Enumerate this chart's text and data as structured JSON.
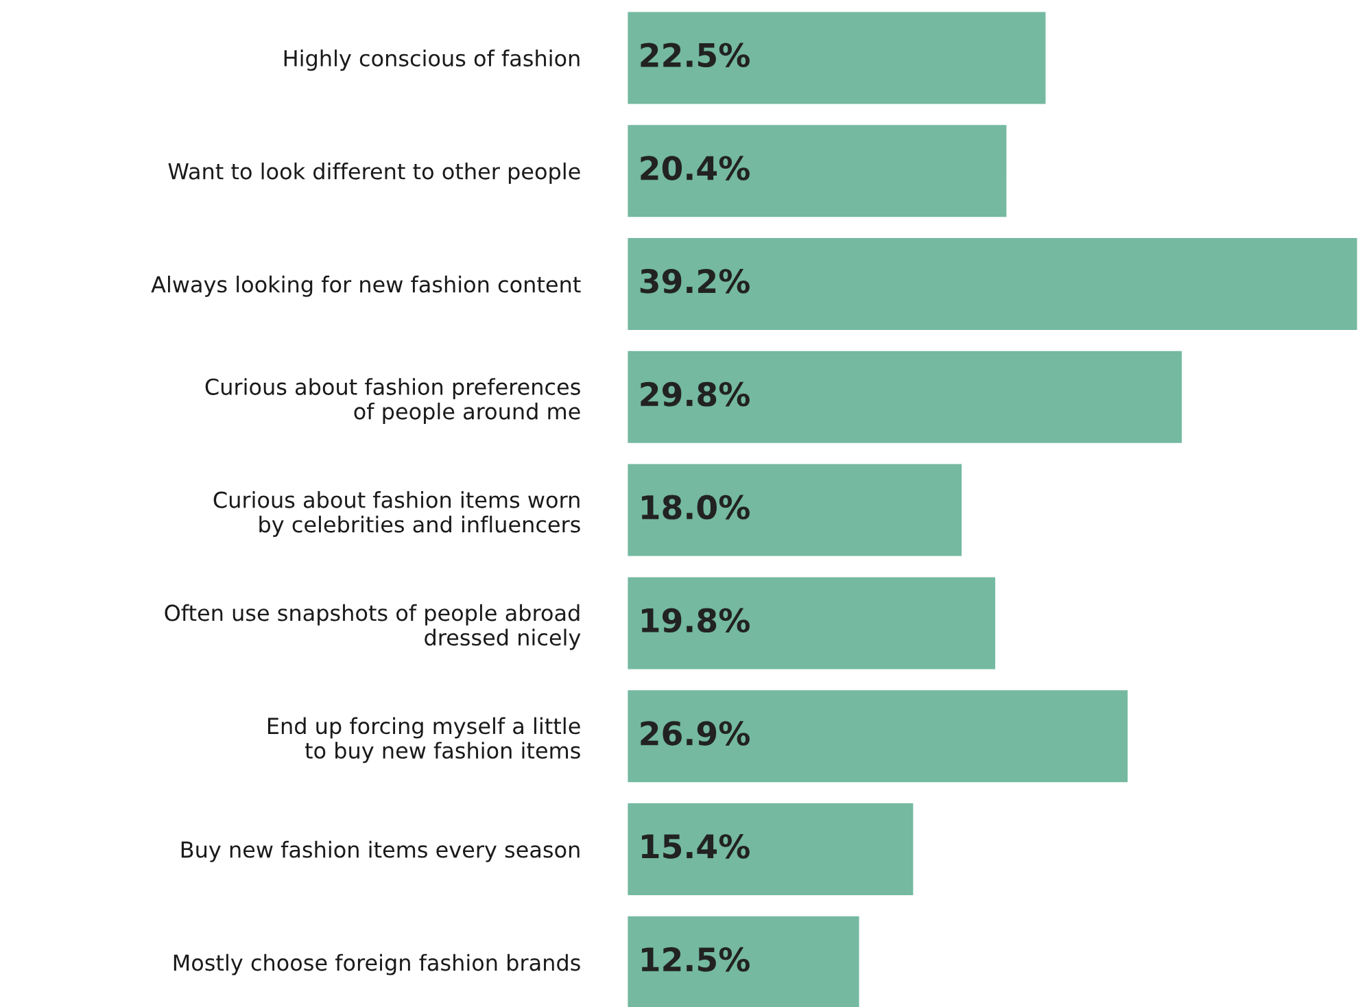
{
  "chart_data": {
    "type": "bar",
    "orientation": "horizontal",
    "categories": [
      "Highly conscious of fashion",
      "Want to look different to other people",
      "Always looking for new fashion content",
      "Curious about fashion preferences\nof people around me",
      "Curious about fashion items worn\nby celebrities and influencers",
      "Often use snapshots of people abroad\ndressed nicely",
      "End up forcing myself a little\nto buy new fashion items",
      "Buy new fashion items every season",
      "Mostly choose foreign fashion brands"
    ],
    "values": [
      22.5,
      20.4,
      39.2,
      29.8,
      18.0,
      19.8,
      26.9,
      15.4,
      12.5
    ],
    "value_labels": [
      "22.5%",
      "20.4%",
      "39.2%",
      "29.8%",
      "18.0%",
      "19.8%",
      "26.9%",
      "15.4%",
      "12.5%"
    ],
    "color": "#74b9a0",
    "grid": false,
    "legend": false
  }
}
